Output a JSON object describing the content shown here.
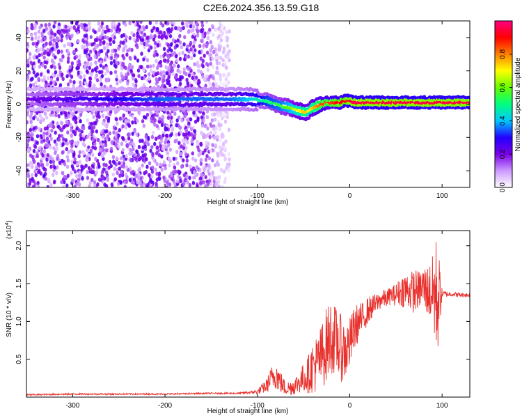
{
  "title": "C2E6.2024.356.13.59.G18",
  "chart_data": [
    {
      "type": "heatmap",
      "title": "C2E6.2024.356.13.59.G18",
      "xlabel": "Height of straight line (km)",
      "ylabel": "Frequency (Hz)",
      "xlim": [
        -350,
        130
      ],
      "ylim": [
        -50,
        50
      ],
      "xticks": [
        -300,
        -200,
        -100,
        0,
        100
      ],
      "yticks": [
        -40,
        -20,
        0,
        20,
        40
      ],
      "colorbar": {
        "label": "Normalized spectral amplitude",
        "range": [
          0,
          1
        ],
        "ticks": [
          0.0,
          0.2,
          0.4,
          0.6,
          0.8
        ],
        "tick_labels": [
          "0.0",
          "0.2",
          "0.4",
          "0.6",
          "0.8"
        ],
        "colormap": [
          "#ffffff",
          "#cc99ff",
          "#7a00e6",
          "#2200ff",
          "#00c8ff",
          "#00ff80",
          "#66ff00",
          "#ffff00",
          "#ff8000",
          "#ff0000",
          "#ff0080"
        ]
      },
      "ridge": {
        "x": [
          -350,
          -250,
          -200,
          -160,
          -130,
          -110,
          -90,
          -75,
          -65,
          -55,
          -48,
          -44,
          -40,
          -35,
          -30,
          -25,
          -20,
          -15,
          -10,
          -5,
          0,
          5,
          10,
          20,
          40,
          60,
          80,
          100,
          130
        ],
        "y": [
          3,
          3,
          3,
          3,
          3,
          3,
          2,
          -1,
          -2,
          -4,
          -5,
          -4,
          -2,
          -1,
          0,
          1,
          1,
          1,
          1,
          2,
          2,
          1,
          1,
          1,
          1,
          1,
          1,
          1,
          1
        ],
        "peak_amplitude": [
          0.2,
          0.3,
          0.35,
          0.35,
          0.35,
          0.4,
          0.5,
          0.55,
          0.6,
          0.7,
          0.75,
          0.7,
          0.75,
          0.8,
          0.85,
          0.85,
          0.85,
          0.9,
          0.9,
          0.9,
          0.95,
          0.95,
          0.95,
          0.95,
          0.95,
          0.95,
          0.95,
          0.95,
          0.95
        ]
      },
      "noise_region": {
        "x_range": [
          -350,
          -130
        ],
        "y_range": [
          -50,
          50
        ]
      }
    },
    {
      "type": "line",
      "xlabel": "Height of straight line (km)",
      "ylabel": "SNR (10 * v/v)",
      "yscale_label": "(x10^4)",
      "xlim": [
        -350,
        130
      ],
      "ylim": [
        0,
        2.2
      ],
      "xticks": [
        -300,
        -200,
        -100,
        0,
        100
      ],
      "yticks": [
        0.5,
        1.0,
        1.5,
        2.0
      ],
      "ytick_labels": [
        "0.5",
        "1.0",
        "1.5",
        "2.0"
      ],
      "series": [
        {
          "color": "#e8302c",
          "x": [
            -350,
            -300,
            -250,
            -200,
            -150,
            -120,
            -100,
            -90,
            -85,
            -80,
            -75,
            -70,
            -65,
            -60,
            -55,
            -50,
            -45,
            -40,
            -35,
            -30,
            -25,
            -20,
            -15,
            -10,
            -5,
            0,
            5,
            10,
            15,
            20,
            25,
            30,
            35,
            40,
            45,
            50,
            55,
            60,
            65,
            70,
            75,
            80,
            85,
            90,
            93,
            95,
            97,
            100,
            110,
            120,
            130
          ],
          "y": [
            0.03,
            0.04,
            0.04,
            0.04,
            0.05,
            0.05,
            0.07,
            0.15,
            0.25,
            0.3,
            0.2,
            0.12,
            0.12,
            0.15,
            0.2,
            0.25,
            0.3,
            0.4,
            0.45,
            0.55,
            0.7,
            0.8,
            0.75,
            0.65,
            0.6,
            0.7,
            0.9,
            1.0,
            1.05,
            1.15,
            1.2,
            1.25,
            1.3,
            1.3,
            1.35,
            1.35,
            1.4,
            1.42,
            1.4,
            1.4,
            1.42,
            1.45,
            1.4,
            1.38,
            1.35,
            1.3,
            1.35,
            1.36,
            1.36,
            1.35,
            1.35
          ],
          "noise_amplitude": [
            0.01,
            0.01,
            0.01,
            0.01,
            0.01,
            0.01,
            0.03,
            0.1,
            0.15,
            0.2,
            0.15,
            0.1,
            0.1,
            0.12,
            0.15,
            0.2,
            0.25,
            0.35,
            0.4,
            0.45,
            0.5,
            0.5,
            0.45,
            0.45,
            0.4,
            0.35,
            0.3,
            0.25,
            0.2,
            0.18,
            0.15,
            0.13,
            0.12,
            0.12,
            0.12,
            0.15,
            0.2,
            0.25,
            0.25,
            0.3,
            0.25,
            0.3,
            0.35,
            0.5,
            0.8,
            0.8,
            0.5,
            0.05,
            0.03,
            0.03,
            0.03
          ]
        }
      ]
    }
  ]
}
